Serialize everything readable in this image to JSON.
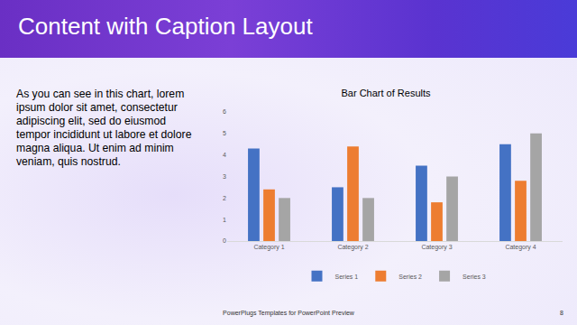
{
  "slide": {
    "title": "Content with Caption Layout",
    "caption": "As you can see in this chart, lorem ipsum dolor sit amet, consectetur adipiscing elit, sed do eiusmod tempor incididunt ut labore et dolore magna aliqua. Ut enim ad minim veniam, quis nostrud.",
    "footer": "PowerPlugs Templates for PowerPoint Preview",
    "page": "8"
  },
  "chart_data": {
    "type": "bar",
    "title": "Bar Chart of Results",
    "categories": [
      "Category 1",
      "Category 2",
      "Category 3",
      "Category 4"
    ],
    "series": [
      {
        "name": "Series 1",
        "color": "#4472c4",
        "values": [
          4.3,
          2.5,
          3.5,
          4.5
        ]
      },
      {
        "name": "Series 2",
        "color": "#ed7d31",
        "values": [
          2.4,
          4.4,
          1.8,
          2.8
        ]
      },
      {
        "name": "Series 3",
        "color": "#a5a5a5",
        "values": [
          2,
          2,
          3,
          5
        ]
      }
    ],
    "ylim": [
      0,
      6
    ],
    "yticks": [
      0,
      1,
      2,
      3,
      4,
      5,
      6
    ],
    "grid": false,
    "legend": "bottom"
  }
}
